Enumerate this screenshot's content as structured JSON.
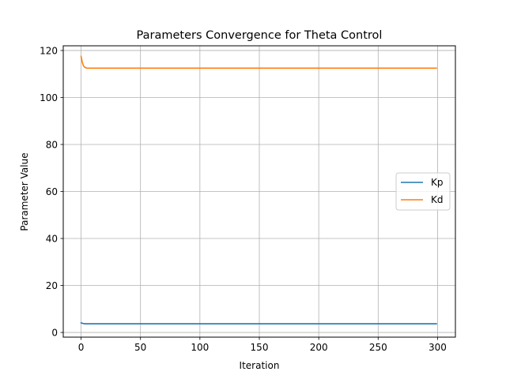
{
  "chart_data": {
    "type": "line",
    "title": "Parameters Convergence for Theta Control",
    "xlabel": "Iteration",
    "ylabel": "Parameter Value",
    "xlim": [
      -15,
      315
    ],
    "ylim": [
      -2,
      122
    ],
    "xticks": [
      0,
      50,
      100,
      150,
      200,
      250,
      300
    ],
    "yticks": [
      0,
      20,
      40,
      60,
      80,
      100,
      120
    ],
    "grid": true,
    "legend_position": "center-right",
    "series": [
      {
        "name": "Kp",
        "color": "#1f77b4",
        "x": [
          0,
          1,
          2,
          3,
          5,
          10,
          50,
          100,
          150,
          200,
          250,
          299
        ],
        "y": [
          4.1,
          3.9,
          3.8,
          3.7,
          3.7,
          3.7,
          3.7,
          3.7,
          3.7,
          3.7,
          3.7,
          3.7
        ]
      },
      {
        "name": "Kd",
        "color": "#ff7f0e",
        "x": [
          0,
          1,
          2,
          3,
          4,
          5,
          7,
          10,
          50,
          100,
          150,
          200,
          250,
          299
        ],
        "y": [
          117.5,
          115.0,
          113.5,
          112.9,
          112.6,
          112.5,
          112.5,
          112.5,
          112.5,
          112.5,
          112.5,
          112.5,
          112.5,
          112.5
        ]
      }
    ]
  }
}
